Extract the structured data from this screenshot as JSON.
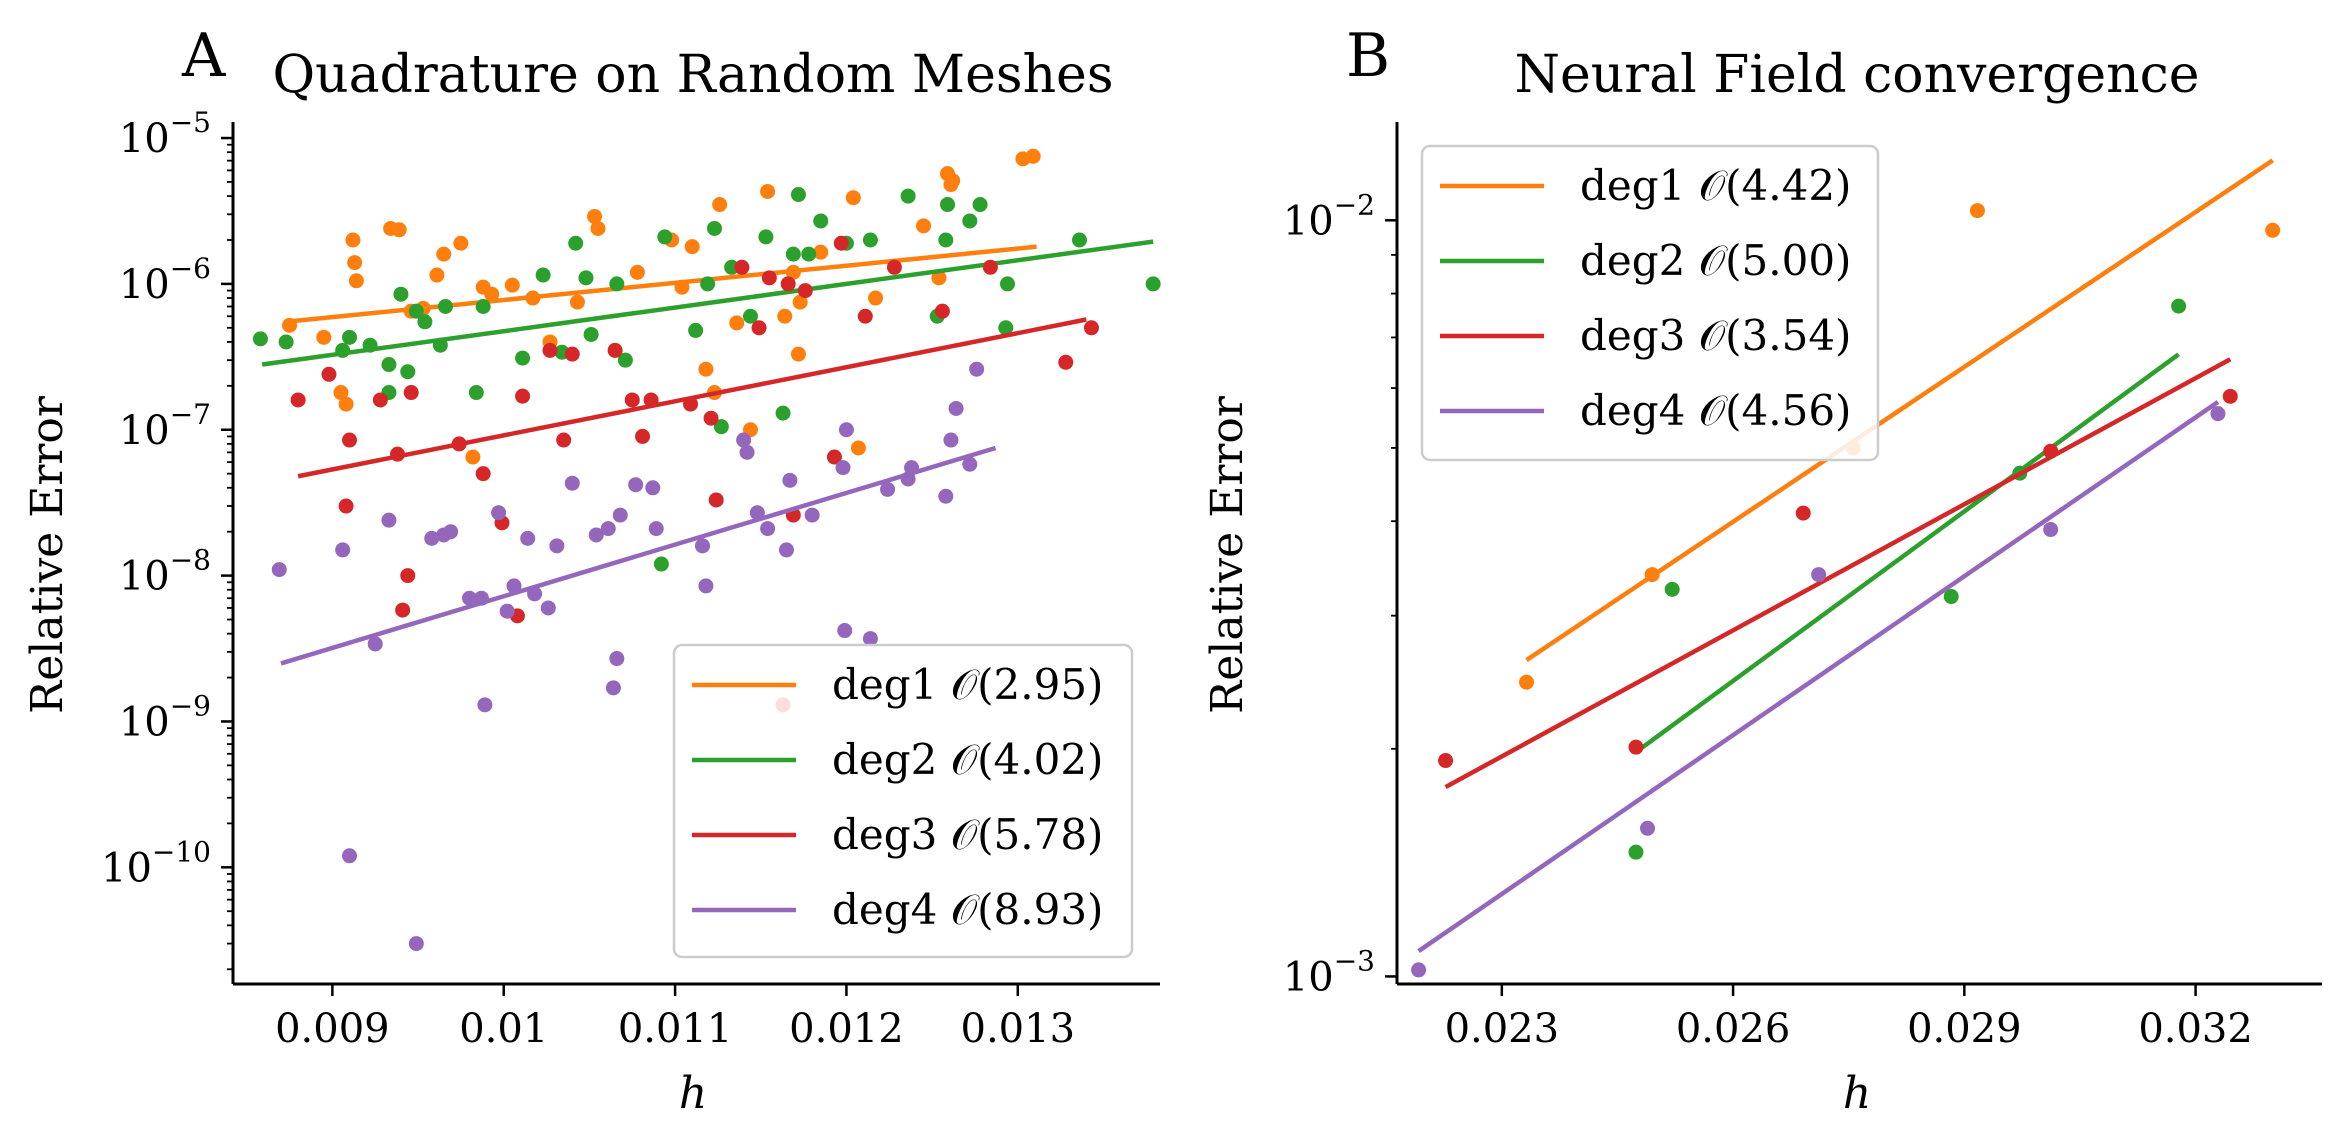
{
  "colors": {
    "deg1": "#ff7f0e",
    "deg2": "#2ca02c",
    "deg3": "#d62728",
    "deg4": "#9467bd"
  },
  "chart_data": [
    {
      "type": "scatter",
      "panel_label": "A",
      "title": "Quadrature on Random Meshes",
      "xlabel": "h",
      "ylabel": "Relative Error",
      "yscale": "log",
      "xlim": [
        0.00842,
        0.01383
      ],
      "ylim_log10": [
        -10.8,
        -4.89
      ],
      "xticks": [
        0.009,
        0.01,
        0.011,
        0.012,
        0.013
      ],
      "xtick_labels": [
        "0.009",
        "0.01",
        "0.011",
        "0.012",
        "0.013"
      ],
      "yticks_log10": [
        -10,
        -9,
        -8,
        -7,
        -6,
        -5
      ],
      "ytick_labels": [
        [
          "10",
          "−10"
        ],
        [
          "10",
          "−9"
        ],
        [
          "10",
          "−8"
        ],
        [
          "10",
          "−7"
        ],
        [
          "10",
          "−6"
        ],
        [
          "10",
          "−5"
        ]
      ],
      "legend_placement": "lower-right",
      "series": [
        {
          "name": "deg1 𝒪(2.95)",
          "color_key": "deg1",
          "fit": [
            [
              0.00873,
              5.5e-07
            ],
            [
              0.01311,
              1.8e-06
            ]
          ],
          "points": [
            [
              0.00875,
              5.2e-07
            ],
            [
              0.00895,
              4.3e-07
            ],
            [
              0.00905,
              1.8e-07
            ],
            [
              0.00908,
              1.5e-07
            ],
            [
              0.00912,
              2e-06
            ],
            [
              0.00913,
              1.4e-06
            ],
            [
              0.00914,
              1.05e-06
            ],
            [
              0.00934,
              2.4e-06
            ],
            [
              0.00939,
              2.35e-06
            ],
            [
              0.00946,
              6.5e-07
            ],
            [
              0.00953,
              6.8e-07
            ],
            [
              0.00961,
              1.15e-06
            ],
            [
              0.00965,
              1.6e-06
            ],
            [
              0.00975,
              1.9e-06
            ],
            [
              0.00982,
              6.5e-08
            ],
            [
              0.00988,
              9.5e-07
            ],
            [
              0.00993,
              8.5e-07
            ],
            [
              0.01005,
              9.8e-07
            ],
            [
              0.01017,
              8e-07
            ],
            [
              0.01027,
              4e-07
            ],
            [
              0.01043,
              7.5e-07
            ],
            [
              0.01053,
              2.9e-06
            ],
            [
              0.01055,
              2.4e-06
            ],
            [
              0.01078,
              1.2e-06
            ],
            [
              0.01098,
              2e-06
            ],
            [
              0.01104,
              9.5e-07
            ],
            [
              0.0111,
              1.8e-06
            ],
            [
              0.01118,
              2.6e-07
            ],
            [
              0.01123,
              1.8e-07
            ],
            [
              0.01126,
              3.5e-06
            ],
            [
              0.01136,
              5.4e-07
            ],
            [
              0.01144,
              1e-07
            ],
            [
              0.01154,
              4.3e-06
            ],
            [
              0.01164,
              6e-07
            ],
            [
              0.01169,
              1.2e-06
            ],
            [
              0.01172,
              3.3e-07
            ],
            [
              0.01173,
              7.5e-07
            ],
            [
              0.01185,
              1.65e-06
            ],
            [
              0.01204,
              3.9e-06
            ],
            [
              0.01207,
              7.5e-08
            ],
            [
              0.01217,
              8e-07
            ],
            [
              0.01245,
              2.5e-06
            ],
            [
              0.01254,
              1.1e-06
            ],
            [
              0.01259,
              5.7e-06
            ],
            [
              0.01261,
              4.8e-06
            ],
            [
              0.01262,
              5.1e-06
            ],
            [
              0.01303,
              7.2e-06
            ],
            [
              0.01309,
              7.5e-06
            ]
          ]
        },
        {
          "name": "deg2 𝒪(4.02)",
          "color_key": "deg2",
          "fit": [
            [
              0.00859,
              2.8e-07
            ],
            [
              0.01379,
              1.95e-06
            ]
          ],
          "points": [
            [
              0.00858,
              4.2e-07
            ],
            [
              0.00873,
              4e-07
            ],
            [
              0.00906,
              3.5e-07
            ],
            [
              0.0091,
              4.3e-07
            ],
            [
              0.00922,
              3.8e-07
            ],
            [
              0.00933,
              1.8e-07
            ],
            [
              0.00933,
              2.8e-07
            ],
            [
              0.0094,
              8.5e-07
            ],
            [
              0.00944,
              2.5e-07
            ],
            [
              0.00949,
              6.5e-07
            ],
            [
              0.00954,
              5.5e-07
            ],
            [
              0.00963,
              3.8e-07
            ],
            [
              0.00966,
              7e-07
            ],
            [
              0.00984,
              1.8e-07
            ],
            [
              0.00988,
              7e-07
            ],
            [
              0.01011,
              3.1e-07
            ],
            [
              0.01023,
              1.15e-06
            ],
            [
              0.01034,
              3.4e-07
            ],
            [
              0.01042,
              1.9e-06
            ],
            [
              0.01048,
              1.1e-06
            ],
            [
              0.01051,
              4.5e-07
            ],
            [
              0.01066,
              1e-06
            ],
            [
              0.01071,
              3e-07
            ],
            [
              0.01092,
              1.2e-08
            ],
            [
              0.01094,
              2.1e-06
            ],
            [
              0.01112,
              4.8e-07
            ],
            [
              0.01119,
              1e-06
            ],
            [
              0.01123,
              2.4e-06
            ],
            [
              0.01127,
              1.05e-07
            ],
            [
              0.01133,
              1.3e-06
            ],
            [
              0.01144,
              6e-07
            ],
            [
              0.01153,
              2.1e-06
            ],
            [
              0.01163,
              1.3e-07
            ],
            [
              0.01169,
              1.6e-06
            ],
            [
              0.01172,
              4.1e-06
            ],
            [
              0.01178,
              1.6e-06
            ],
            [
              0.01185,
              2.7e-06
            ],
            [
              0.012,
              1.9e-06
            ],
            [
              0.01214,
              2e-06
            ],
            [
              0.01236,
              4e-06
            ],
            [
              0.01253,
              6e-07
            ],
            [
              0.01258,
              2e-06
            ],
            [
              0.01259,
              3.5e-06
            ],
            [
              0.01272,
              2.7e-06
            ],
            [
              0.01278,
              3.5e-06
            ],
            [
              0.01293,
              5e-07
            ],
            [
              0.01294,
              1e-06
            ],
            [
              0.01336,
              2e-06
            ],
            [
              0.01379,
              1e-06
            ]
          ]
        },
        {
          "name": "deg3 𝒪(5.78)",
          "color_key": "deg3",
          "fit": [
            [
              0.0088,
              4.8e-08
            ],
            [
              0.0134,
              5.7e-07
            ]
          ],
          "points": [
            [
              0.0088,
              1.6e-07
            ],
            [
              0.00898,
              2.4e-07
            ],
            [
              0.00908,
              3e-08
            ],
            [
              0.0091,
              8.5e-08
            ],
            [
              0.00928,
              1.6e-07
            ],
            [
              0.00938,
              6.8e-08
            ],
            [
              0.00941,
              5.8e-09
            ],
            [
              0.00944,
              1e-08
            ],
            [
              0.00946,
              1.8e-07
            ],
            [
              0.00974,
              8e-08
            ],
            [
              0.00988,
              5e-08
            ],
            [
              0.00999,
              2.3e-08
            ],
            [
              0.01008,
              5.3e-09
            ],
            [
              0.01011,
              1.7e-07
            ],
            [
              0.01027,
              3.5e-07
            ],
            [
              0.01035,
              8.5e-08
            ],
            [
              0.0104,
              3.3e-07
            ],
            [
              0.01065,
              3.5e-07
            ],
            [
              0.01075,
              1.6e-07
            ],
            [
              0.01081,
              9e-08
            ],
            [
              0.01086,
              1.6e-07
            ],
            [
              0.01109,
              1.5e-07
            ],
            [
              0.01121,
              1.2e-07
            ],
            [
              0.01124,
              3.3e-08
            ],
            [
              0.01139,
              1.3e-06
            ],
            [
              0.01149,
              5e-07
            ],
            [
              0.01155,
              1.1e-06
            ],
            [
              0.01163,
              1.3e-09
            ],
            [
              0.01166,
              1e-06
            ],
            [
              0.01169,
              2.6e-08
            ],
            [
              0.01176,
              9e-07
            ],
            [
              0.01193,
              6.5e-08
            ],
            [
              0.01197,
              1.9e-06
            ],
            [
              0.01211,
              6e-07
            ],
            [
              0.01228,
              1.3e-06
            ],
            [
              0.01256,
              6.5e-07
            ],
            [
              0.01284,
              1.3e-06
            ],
            [
              0.01328,
              2.9e-07
            ],
            [
              0.01343,
              5e-07
            ]
          ]
        },
        {
          "name": "deg4 𝒪(8.93)",
          "color_key": "deg4",
          "fit": [
            [
              0.0087,
              2.5e-09
            ],
            [
              0.01287,
              7.5e-08
            ]
          ],
          "points": [
            [
              0.00869,
              1.1e-08
            ],
            [
              0.00906,
              1.5e-08
            ],
            [
              0.0091,
              1.2e-10
            ],
            [
              0.00925,
              3.4e-09
            ],
            [
              0.00933,
              2.4e-08
            ],
            [
              0.00949,
              3e-11
            ],
            [
              0.00958,
              1.8e-08
            ],
            [
              0.00965,
              1.9e-08
            ],
            [
              0.00969,
              2e-08
            ],
            [
              0.0098,
              7e-09
            ],
            [
              0.00987,
              7e-09
            ],
            [
              0.00989,
              1.3e-09
            ],
            [
              0.00997,
              2.7e-08
            ],
            [
              0.01002,
              5.7e-09
            ],
            [
              0.01006,
              8.5e-09
            ],
            [
              0.01014,
              1.8e-08
            ],
            [
              0.01018,
              7.5e-09
            ],
            [
              0.01026,
              6e-09
            ],
            [
              0.01031,
              1.6e-08
            ],
            [
              0.0104,
              4.3e-08
            ],
            [
              0.01054,
              1.9e-08
            ],
            [
              0.01061,
              2.1e-08
            ],
            [
              0.01064,
              1.7e-09
            ],
            [
              0.01066,
              2.7e-09
            ],
            [
              0.01068,
              2.6e-08
            ],
            [
              0.01077,
              4.2e-08
            ],
            [
              0.01087,
              4e-08
            ],
            [
              0.01089,
              2.1e-08
            ],
            [
              0.01116,
              1.6e-08
            ],
            [
              0.01118,
              8.5e-09
            ],
            [
              0.0114,
              8.5e-08
            ],
            [
              0.01142,
              7e-08
            ],
            [
              0.01148,
              2.7e-08
            ],
            [
              0.01154,
              2.1e-08
            ],
            [
              0.01165,
              1.5e-08
            ],
            [
              0.01167,
              4.5e-08
            ],
            [
              0.0118,
              2.6e-08
            ],
            [
              0.01198,
              5.5e-08
            ],
            [
              0.01199,
              4.2e-09
            ],
            [
              0.012,
              1e-07
            ],
            [
              0.01214,
              3.7e-09
            ],
            [
              0.01224,
              3.9e-08
            ],
            [
              0.01236,
              4.6e-08
            ],
            [
              0.01238,
              5.5e-08
            ],
            [
              0.01258,
              3.5e-08
            ],
            [
              0.01261,
              8.5e-08
            ],
            [
              0.01264,
              1.4e-07
            ],
            [
              0.01272,
              5.8e-08
            ],
            [
              0.01276,
              2.6e-07
            ]
          ]
        }
      ]
    },
    {
      "type": "scatter",
      "panel_label": "B",
      "title": "Neural Field convergence",
      "xlabel": "h",
      "ylabel": "Relative Error",
      "yscale": "log",
      "xlim": [
        0.02164,
        0.03364
      ],
      "ylim_log10": [
        -3.01,
        -1.87
      ],
      "xticks": [
        0.023,
        0.026,
        0.029,
        0.032
      ],
      "xtick_labels": [
        "0.023",
        "0.026",
        "0.029",
        "0.032"
      ],
      "yticks_log10": [
        -3,
        -2
      ],
      "ytick_labels": [
        [
          "10",
          "−3"
        ],
        [
          "10",
          "−2"
        ]
      ],
      "legend_placement": "top-left",
      "series": [
        {
          "name": "deg1 𝒪(4.42)",
          "color_key": "deg1",
          "fit": [
            [
              0.02332,
              0.00262
            ],
            [
              0.033,
              0.012
            ]
          ],
          "points": [
            [
              0.02332,
              0.00245
            ],
            [
              0.02495,
              0.0034
            ],
            [
              0.02756,
              0.005
            ],
            [
              0.02917,
              0.0103
            ],
            [
              0.033,
              0.0097
            ]
          ]
        },
        {
          "name": "deg2 𝒪(5.00)",
          "color_key": "deg2",
          "fit": [
            [
              0.02474,
              0.00198
            ],
            [
              0.03178,
              0.00665
            ]
          ],
          "points": [
            [
              0.02474,
              0.00146
            ],
            [
              0.02521,
              0.00325
            ],
            [
              0.02883,
              0.00318
            ],
            [
              0.02972,
              0.00463
            ],
            [
              0.03178,
              0.0077
            ]
          ]
        },
        {
          "name": "deg3 𝒪(3.54)",
          "color_key": "deg3",
          "fit": [
            [
              0.02227,
              0.00178
            ],
            [
              0.03245,
              0.00655
            ]
          ],
          "points": [
            [
              0.02227,
              0.00193
            ],
            [
              0.02474,
              0.00201
            ],
            [
              0.02691,
              0.0041
            ],
            [
              0.03012,
              0.00495
            ],
            [
              0.03245,
              0.00585
            ]
          ]
        },
        {
          "name": "deg4 𝒪(4.56)",
          "color_key": "deg4",
          "fit": [
            [
              0.02192,
              0.00108
            ],
            [
              0.03229,
              0.00575
            ]
          ],
          "points": [
            [
              0.02192,
              0.00102
            ],
            [
              0.02489,
              0.00157
            ],
            [
              0.02711,
              0.0034
            ],
            [
              0.03012,
              0.0039
            ],
            [
              0.03229,
              0.00555
            ]
          ]
        }
      ]
    }
  ]
}
